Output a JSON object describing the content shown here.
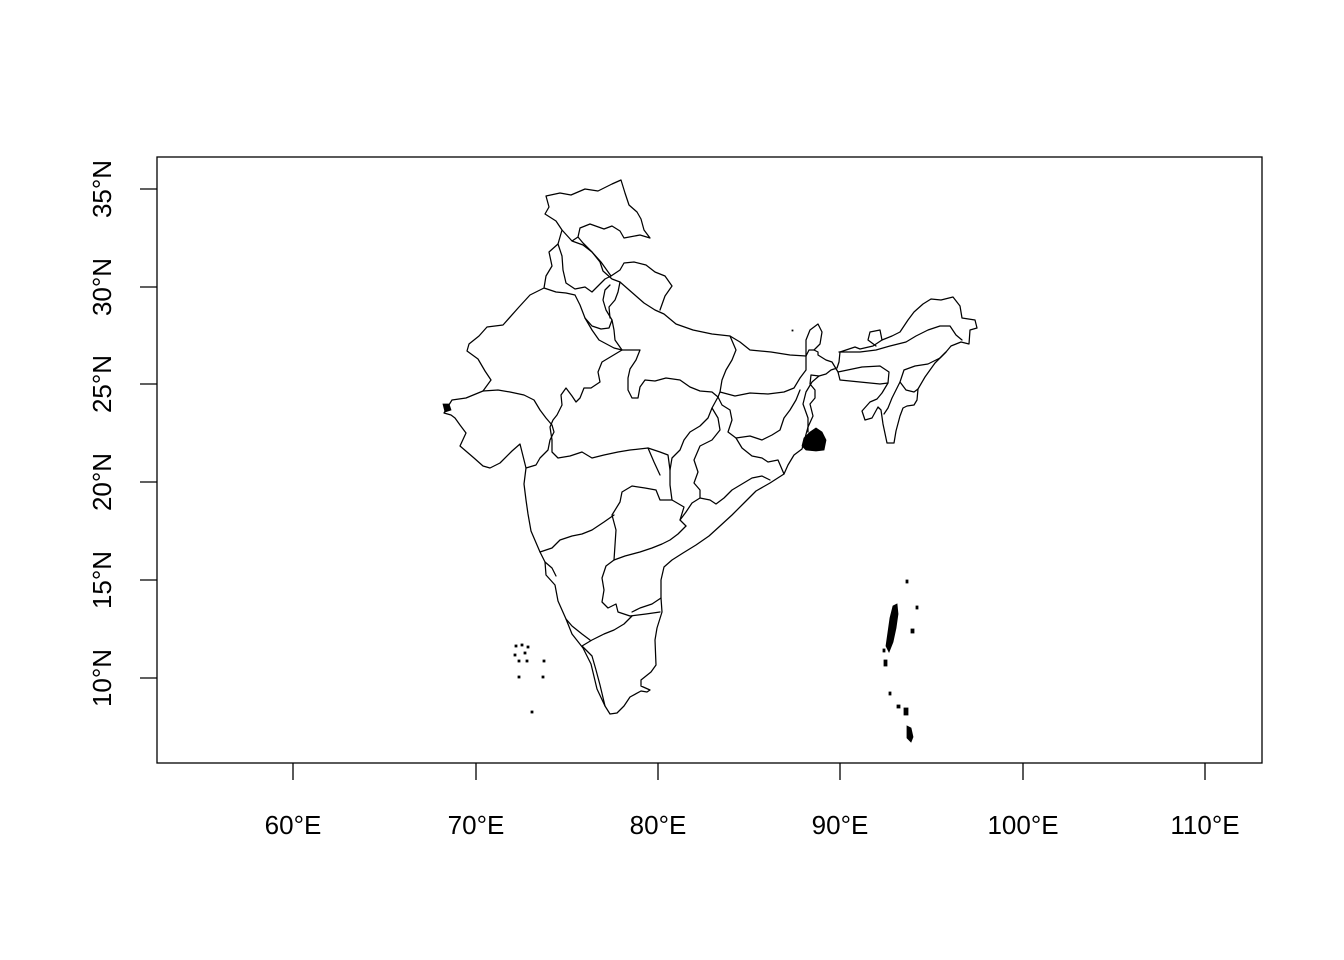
{
  "map": {
    "type": "map",
    "region": "India",
    "x_axis": {
      "ticks": [
        60,
        70,
        80,
        90,
        100,
        110
      ],
      "labels": [
        "60°E",
        "70°E",
        "80°E",
        "90°E",
        "100°E",
        "110°E"
      ],
      "range": [
        52.5,
        113
      ]
    },
    "y_axis": {
      "ticks": [
        10,
        15,
        20,
        25,
        30,
        35
      ],
      "labels": [
        "10°N",
        "15°N",
        "20°N",
        "25°N",
        "30°N",
        "35°N"
      ],
      "range": [
        5.7,
        36.7
      ]
    }
  }
}
